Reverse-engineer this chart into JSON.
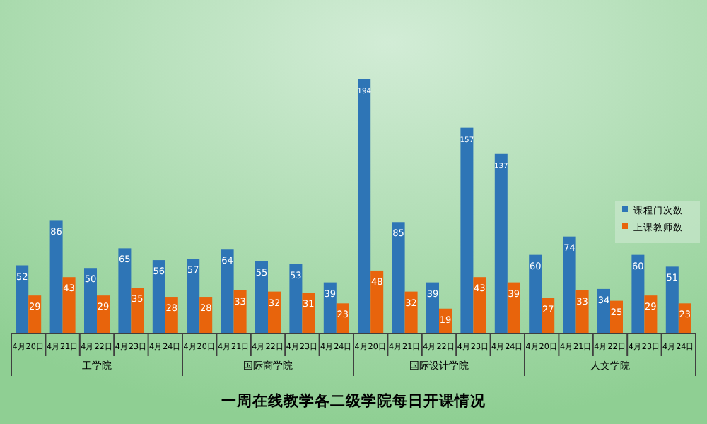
{
  "chart_data": {
    "type": "bar",
    "title": "一周在线教学各二级学院每日开课情况",
    "categories": [
      "4月20日",
      "4月21日",
      "4月22日",
      "4月23日",
      "4月24日",
      "4月20日",
      "4月21日",
      "4月22日",
      "4月23日",
      "4月24日",
      "4月20日",
      "4月21日",
      "4月22日",
      "4月23日",
      "4月24日",
      "4月20日",
      "4月21日",
      "4月22日",
      "4月23日",
      "4月24日"
    ],
    "series": [
      {
        "name": "课程门次数",
        "color": "#2e75b6",
        "values": [
          52,
          86,
          50,
          65,
          56,
          57,
          64,
          55,
          53,
          39,
          194,
          85,
          39,
          157,
          137,
          60,
          74,
          34,
          60,
          51
        ]
      },
      {
        "name": "上课教师数",
        "color": "#e8640c",
        "values": [
          29,
          43,
          29,
          35,
          28,
          28,
          33,
          32,
          31,
          23,
          48,
          32,
          19,
          43,
          39,
          27,
          33,
          25,
          29,
          23
        ]
      }
    ],
    "annotations": [
      "工学院",
      "国际商学院",
      "国际设计学院",
      "人文学院"
    ],
    "data_labels": true,
    "legend": "right"
  }
}
